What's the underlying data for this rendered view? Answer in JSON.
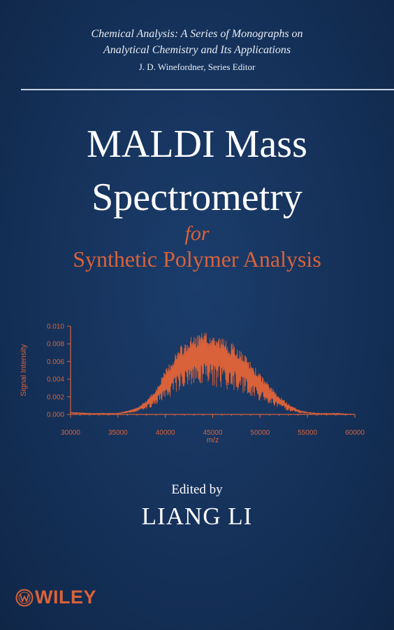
{
  "series": {
    "line1": "Chemical Analysis: A Series of Monographs on",
    "line2": "Analytical Chemistry and Its Applications",
    "editor": "J. D. Winefordner, Series Editor"
  },
  "title": {
    "line1": "MALDI Mass",
    "line2": "Spectrometry",
    "connector": "for",
    "subtitle": "Synthetic Polymer Analysis"
  },
  "chart_data": {
    "type": "line",
    "xlabel": "m/z",
    "ylabel": "Signal Intensity",
    "xlim": [
      30000,
      60000
    ],
    "ylim": [
      0,
      0.01
    ],
    "x_ticks": [
      "30000",
      "35000",
      "40000",
      "45000",
      "50000",
      "55000",
      "60000"
    ],
    "y_ticks": [
      "0.000",
      "0.002",
      "0.004",
      "0.006",
      "0.008",
      "0.010"
    ],
    "grid": false,
    "series": [
      {
        "x": [
          30000,
          32000,
          34000,
          35000,
          36000,
          37000,
          38000,
          39000,
          40000,
          41000,
          42000,
          43000,
          44000,
          45000,
          46000,
          47000,
          48000,
          49000,
          50000,
          51000,
          52000,
          53000,
          54000,
          55000,
          56000,
          58000,
          60000
        ],
        "y": [
          0.0002,
          0.0001,
          0.0001,
          0.0001,
          0.0003,
          0.0006,
          0.0012,
          0.0022,
          0.0038,
          0.0052,
          0.0062,
          0.0068,
          0.007,
          0.0069,
          0.0066,
          0.0061,
          0.0054,
          0.0045,
          0.0035,
          0.0025,
          0.0016,
          0.0009,
          0.0004,
          0.0002,
          0.0001,
          0.0001,
          0.0
        ]
      }
    ]
  },
  "credits": {
    "edited_by": "Edited by",
    "author": "LIANG LI"
  },
  "publisher": {
    "name": "WILEY",
    "accent_color": "#d9623a"
  },
  "colors": {
    "background": "#153159",
    "accent": "#d9623a",
    "text": "#ffffff"
  }
}
